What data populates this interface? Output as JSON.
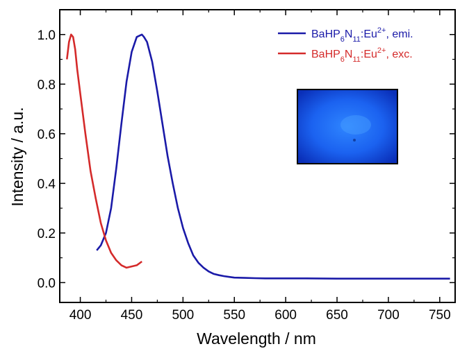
{
  "chart_data": {
    "type": "line",
    "xlabel": "Wavelength / nm",
    "ylabel": "Intensity / a.u.",
    "xlim": [
      380,
      765
    ],
    "ylim": [
      -0.08,
      1.1
    ],
    "xticks": [
      400,
      450,
      500,
      550,
      600,
      650,
      700,
      750
    ],
    "yticks": [
      0.0,
      0.2,
      0.4,
      0.6,
      0.8,
      1.0
    ],
    "xtick_labels": [
      "400",
      "450",
      "500",
      "550",
      "600",
      "650",
      "700",
      "750"
    ],
    "ytick_labels": [
      "0.0",
      "0.2",
      "0.4",
      "0.6",
      "0.8",
      "1.0"
    ],
    "grid": false,
    "legend_position": "top-right",
    "inset_image": "blue luminescence photo",
    "series": [
      {
        "label_parts": [
          "BaHP",
          "6",
          "N",
          "11",
          ":Eu",
          "2+",
          ", emi."
        ],
        "color": "#1a1aa8",
        "x": [
          416,
          420,
          425,
          430,
          435,
          440,
          445,
          450,
          455,
          460,
          462,
          465,
          470,
          475,
          480,
          485,
          490,
          495,
          500,
          505,
          510,
          515,
          520,
          525,
          530,
          535,
          540,
          545,
          550,
          560,
          570,
          580,
          600,
          620,
          650,
          700,
          760
        ],
        "y": [
          0.13,
          0.15,
          0.2,
          0.3,
          0.46,
          0.64,
          0.81,
          0.93,
          0.99,
          1.0,
          0.99,
          0.97,
          0.89,
          0.77,
          0.64,
          0.51,
          0.4,
          0.3,
          0.22,
          0.16,
          0.11,
          0.08,
          0.06,
          0.045,
          0.035,
          0.03,
          0.026,
          0.023,
          0.02,
          0.019,
          0.018,
          0.017,
          0.017,
          0.017,
          0.016,
          0.016,
          0.016
        ]
      },
      {
        "label_parts": [
          "BaHP",
          "6",
          "N",
          "11",
          ":Eu",
          "2+",
          ", exc."
        ],
        "color": "#d42a2a",
        "x": [
          387,
          389,
          391,
          393,
          395,
          397,
          400,
          405,
          410,
          415,
          420,
          425,
          430,
          435,
          440,
          445,
          450,
          455,
          460
        ],
        "y": [
          0.9,
          0.97,
          1.0,
          0.99,
          0.94,
          0.86,
          0.76,
          0.6,
          0.45,
          0.34,
          0.24,
          0.17,
          0.12,
          0.09,
          0.07,
          0.06,
          0.065,
          0.07,
          0.085
        ]
      }
    ]
  }
}
